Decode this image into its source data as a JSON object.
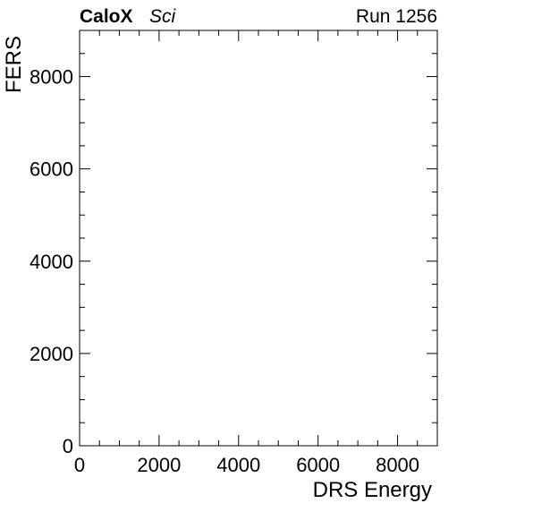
{
  "header": {
    "experiment_bold": "CaloX",
    "experiment_italic": "Sci",
    "run_label": "Run 1256"
  },
  "chart_data": {
    "type": "scatter",
    "title": "",
    "xlabel": "DRS Energy",
    "ylabel": "FERS",
    "xlim": [
      0,
      9000
    ],
    "ylim": [
      0,
      9000
    ],
    "x_ticks": [
      0,
      2000,
      4000,
      6000,
      8000
    ],
    "y_ticks": [
      0,
      2000,
      4000,
      6000,
      8000
    ],
    "x_tick_labels": [
      "0",
      "2000",
      "4000",
      "6000",
      "8000"
    ],
    "y_tick_labels": [
      "0",
      "2000",
      "4000",
      "6000",
      "8000"
    ],
    "minor_step": 500,
    "grid": false,
    "points": []
  }
}
